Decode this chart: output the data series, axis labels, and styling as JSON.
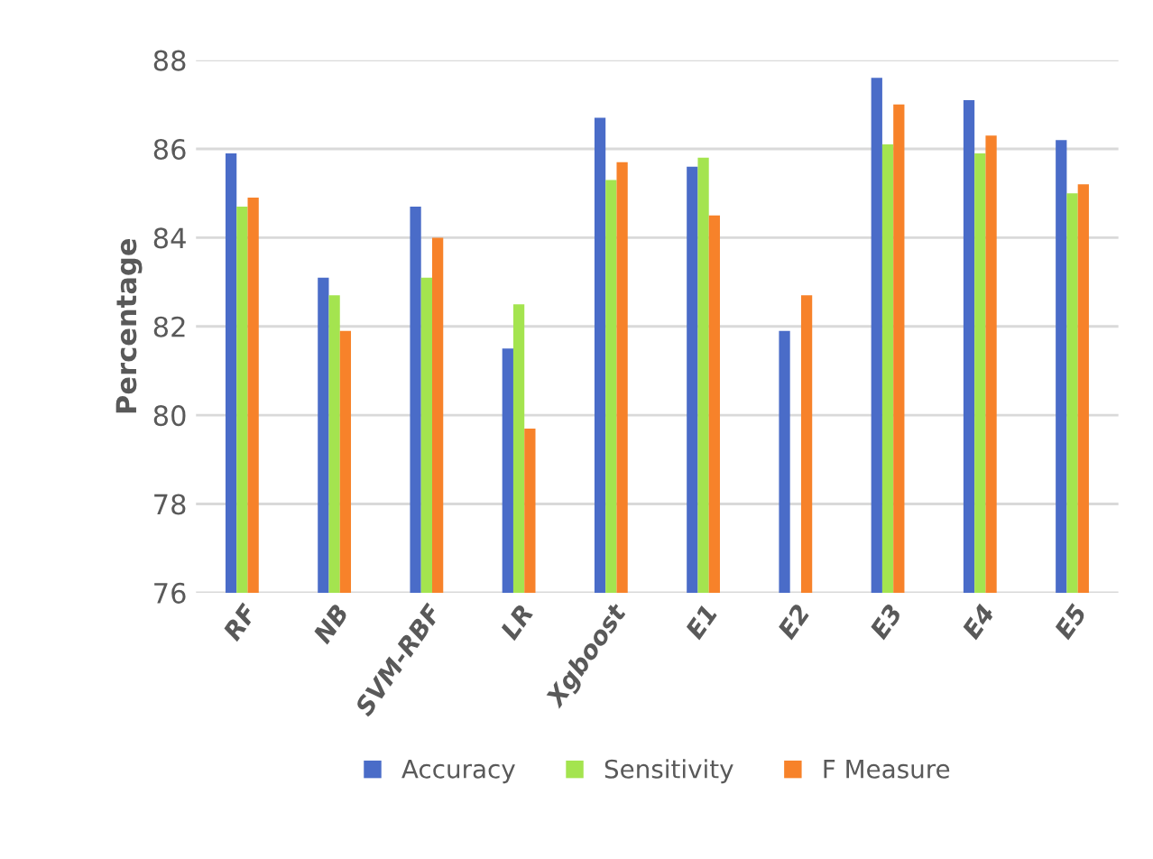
{
  "chart_data": {
    "type": "bar",
    "ylabel": "Percentage",
    "categories": [
      "RF",
      "NB",
      "SVM-RBF",
      "LR",
      "Xgboost",
      "E1",
      "E2",
      "E3",
      "E4",
      "E5"
    ],
    "series": [
      {
        "name": "Accuracy",
        "color": "#4a6cc8",
        "values": [
          85.9,
          83.1,
          84.7,
          81.5,
          86.7,
          85.6,
          81.9,
          87.6,
          87.1,
          86.2
        ]
      },
      {
        "name": "Sensitivity",
        "color": "#a4e44f",
        "values": [
          84.7,
          82.7,
          83.1,
          82.5,
          85.3,
          85.8,
          76,
          86.1,
          85.9,
          85.0
        ]
      },
      {
        "name": "F Measure",
        "color": "#f7822a",
        "values": [
          84.9,
          81.9,
          84.0,
          79.7,
          85.7,
          84.5,
          82.7,
          87.0,
          86.3,
          85.2
        ]
      }
    ],
    "ylim": [
      76,
      88
    ],
    "yticks": [
      76,
      78,
      80,
      82,
      84,
      86,
      88
    ],
    "grid": "y",
    "legend": "bottom"
  }
}
